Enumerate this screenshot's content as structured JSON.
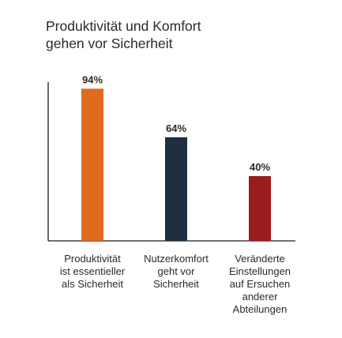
{
  "chart_data": {
    "type": "bar",
    "title_lines": [
      "Produktivität und Komfort",
      "gehen vor Sicherheit"
    ],
    "categories": [
      [
        "Produktivität",
        "ist essentieller",
        "als Sicherheit"
      ],
      [
        "Nutzerkomfort",
        "geht vor",
        "Sicherheit"
      ],
      [
        "Veränderte",
        "Einstellungen",
        "auf Ersuchen",
        "anderer",
        "Abteilungen"
      ]
    ],
    "values": [
      94,
      64,
      40
    ],
    "data_labels": [
      "94%",
      "64%",
      "40%"
    ],
    "colors": [
      "#e06a1e",
      "#1d2f3f",
      "#9b1c1f"
    ],
    "ylim": [
      0,
      100
    ],
    "xlabel": "",
    "ylabel": "",
    "grid": false,
    "legend": "none"
  }
}
